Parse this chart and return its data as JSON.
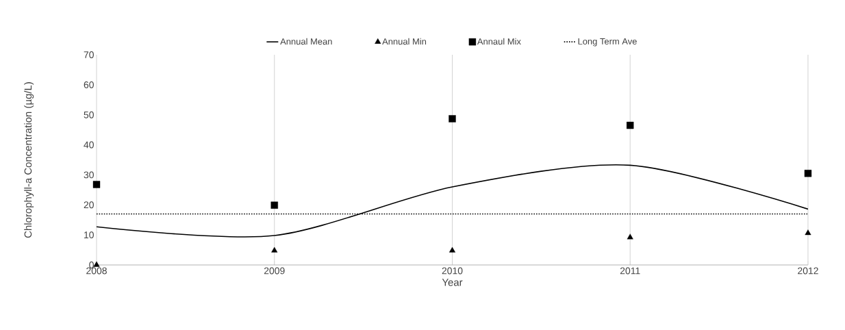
{
  "chart_data": {
    "type": "line",
    "xlabel": "Year",
    "ylabel": "Chlorophyll-a Concentration (µg/L)",
    "x": [
      2008,
      2009,
      2010,
      2011,
      2012
    ],
    "series": [
      {
        "name": "Annual Mean",
        "color": "#000000",
        "marker": "none",
        "line_style": "solid",
        "values": [
          12.7,
          9.8,
          26,
          33.2,
          18.6
        ]
      },
      {
        "name": "Annual Min",
        "type": "scatter",
        "color": "#000000",
        "marker": "triangle",
        "values": [
          0,
          4.8,
          4.8,
          9.2,
          10.6
        ]
      },
      {
        "name": "Annaul Mix",
        "type": "scatter",
        "color": "#000000",
        "marker": "square",
        "values": [
          26.8,
          19.9,
          48.7,
          46.5,
          30.5
        ]
      }
    ],
    "ref_lines": [
      {
        "axis": "y",
        "value": 17,
        "label": "Long Term Ave",
        "color": "#000000",
        "line_style": "dotted"
      }
    ],
    "xlim": [
      2008,
      2012
    ],
    "xticks": [
      2008,
      2009,
      2010,
      2011,
      2012
    ],
    "ylim": [
      0,
      70
    ],
    "yticks": [
      0,
      10,
      20,
      30,
      40,
      50,
      60,
      70
    ],
    "grid": true,
    "legend": "top"
  }
}
